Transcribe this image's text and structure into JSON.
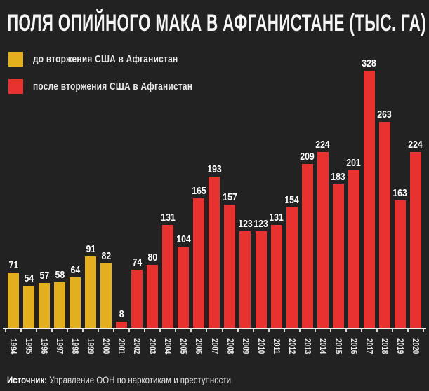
{
  "title": "ПОЛЯ ОПИЙНОГО МАКА В АФГАНИСТАНЕ (ТЫС. ГА)",
  "legend": {
    "before": {
      "label": "до вторжения США в Афганистан",
      "color": "#E4AF1E"
    },
    "after": {
      "label": "после вторжения США в Афганистан",
      "color": "#E8322F"
    }
  },
  "source": {
    "label": "Источник:",
    "text": "Управление ООН по наркотикам и преступности"
  },
  "colors": {
    "background": "#222222",
    "bar_before": "#E4AF1E",
    "bar_after": "#E8322F",
    "text": "#FFFFFF",
    "axis": "#EDEDED"
  },
  "chart_data": {
    "type": "bar",
    "title": "ПОЛЯ ОПИЙНОГО МАКА В АФГАНИСТАНЕ (ТЫС. ГА)",
    "unit": "тыс. га",
    "categories": [
      "1994",
      "1995",
      "1996",
      "1997",
      "1998",
      "1999",
      "2000",
      "2001",
      "2002",
      "2003",
      "2004",
      "2005",
      "2006",
      "2007",
      "2008",
      "2009",
      "2010",
      "2011",
      "2012",
      "2013",
      "2014",
      "2015",
      "2016",
      "2017",
      "2018",
      "2019",
      "2020"
    ],
    "values": [
      71,
      54,
      57,
      58,
      64,
      91,
      82,
      8,
      74,
      80,
      131,
      104,
      165,
      193,
      157,
      123,
      123,
      131,
      154,
      209,
      224,
      183,
      201,
      328,
      263,
      163,
      224
    ],
    "series": [
      {
        "name": "до вторжения США в Афганистан",
        "range": "1994–2000",
        "color_key": "bar_before"
      },
      {
        "name": "после вторжения США в Афганистан",
        "range": "2001–2020",
        "color_key": "bar_after"
      }
    ],
    "split_index": 7,
    "ylim": [
      0,
      340
    ],
    "value_labels": true,
    "grid": false,
    "legend_position": "top-left",
    "xlabel": "",
    "ylabel": ""
  }
}
